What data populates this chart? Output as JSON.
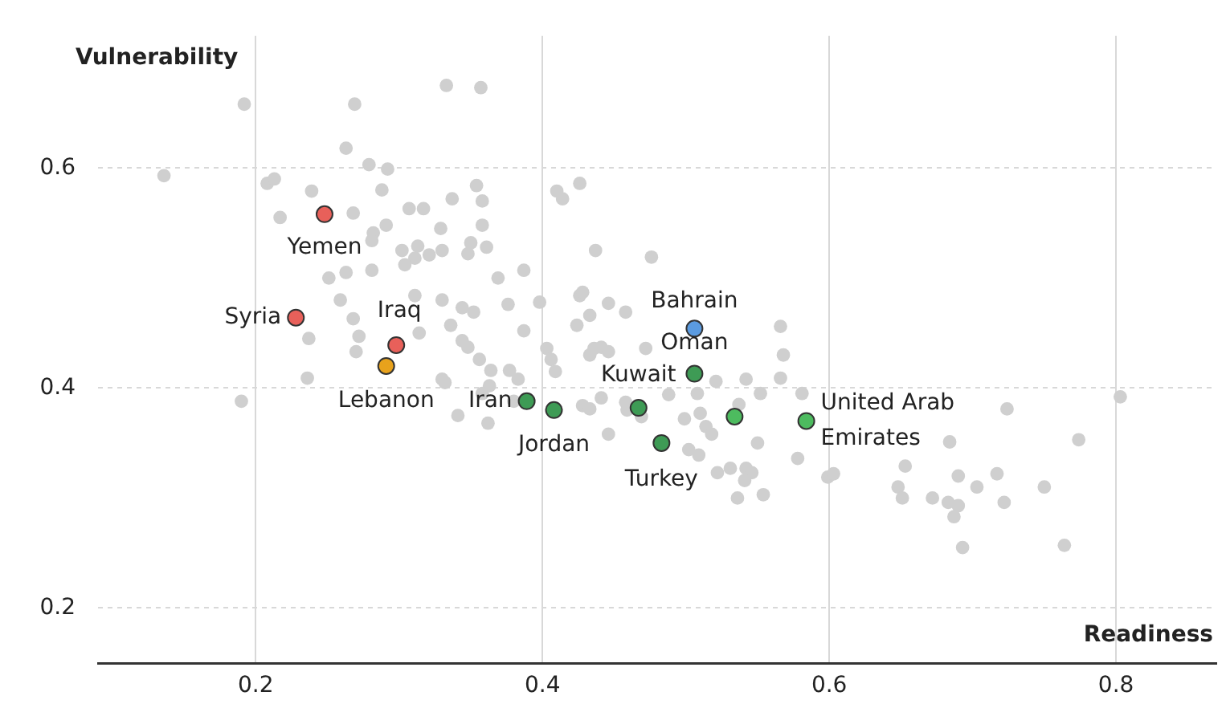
{
  "chart_data": {
    "type": "scatter",
    "xlabel": "Readiness",
    "ylabel": "Vulnerability",
    "xlim": [
      0.09,
      0.87
    ],
    "ylim": [
      0.15,
      0.72
    ],
    "xticks": [
      0.2,
      0.4,
      0.6,
      0.8
    ],
    "yticks": [
      0.2,
      0.4,
      0.6
    ],
    "grid": true,
    "marker": "circle",
    "series": [
      {
        "color": "#cfcfcf",
        "x": [
          0.192,
          0.269,
          0.333,
          0.357,
          0.263,
          0.279,
          0.292,
          0.136,
          0.208,
          0.213,
          0.239,
          0.288,
          0.354,
          0.337,
          0.358,
          0.217,
          0.268,
          0.307,
          0.317,
          0.291,
          0.282,
          0.281,
          0.329,
          0.358,
          0.302,
          0.313,
          0.311,
          0.321,
          0.33,
          0.35,
          0.361,
          0.348,
          0.369,
          0.304,
          0.251,
          0.263,
          0.281,
          0.259,
          0.311,
          0.33,
          0.344,
          0.352,
          0.376,
          0.268,
          0.237,
          0.272,
          0.27,
          0.314,
          0.336,
          0.344,
          0.348,
          0.41,
          0.414,
          0.426,
          0.437,
          0.476,
          0.387,
          0.398,
          0.426,
          0.428,
          0.446,
          0.458,
          0.424,
          0.433,
          0.387,
          0.566,
          0.568,
          0.403,
          0.436,
          0.441,
          0.446,
          0.472,
          0.236,
          0.19,
          0.356,
          0.364,
          0.377,
          0.33,
          0.332,
          0.363,
          0.358,
          0.341,
          0.362,
          0.406,
          0.433,
          0.566,
          0.542,
          0.521,
          0.508,
          0.488,
          0.552,
          0.581,
          0.537,
          0.383,
          0.409,
          0.441,
          0.428,
          0.433,
          0.458,
          0.459,
          0.469,
          0.38,
          0.499,
          0.51,
          0.514,
          0.518,
          0.446,
          0.55,
          0.502,
          0.509,
          0.578,
          0.522,
          0.531,
          0.542,
          0.546,
          0.541,
          0.599,
          0.603,
          0.536,
          0.554,
          0.803,
          0.724,
          0.774,
          0.684,
          0.653,
          0.69,
          0.717,
          0.703,
          0.75,
          0.648,
          0.651,
          0.672,
          0.683,
          0.69,
          0.687,
          0.722,
          0.693,
          0.764
        ],
        "values": [
          0.658,
          0.658,
          0.675,
          0.673,
          0.618,
          0.603,
          0.599,
          0.593,
          0.586,
          0.59,
          0.579,
          0.58,
          0.584,
          0.572,
          0.57,
          0.555,
          0.559,
          0.563,
          0.563,
          0.548,
          0.541,
          0.534,
          0.545,
          0.548,
          0.525,
          0.529,
          0.518,
          0.521,
          0.525,
          0.532,
          0.528,
          0.522,
          0.5,
          0.512,
          0.5,
          0.505,
          0.507,
          0.48,
          0.484,
          0.48,
          0.473,
          0.469,
          0.476,
          0.463,
          0.445,
          0.447,
          0.433,
          0.45,
          0.457,
          0.443,
          0.437,
          0.579,
          0.572,
          0.586,
          0.525,
          0.519,
          0.507,
          0.478,
          0.484,
          0.487,
          0.477,
          0.469,
          0.457,
          0.466,
          0.452,
          0.456,
          0.43,
          0.436,
          0.436,
          0.437,
          0.433,
          0.436,
          0.409,
          0.388,
          0.426,
          0.416,
          0.416,
          0.408,
          0.405,
          0.402,
          0.395,
          0.375,
          0.368,
          0.426,
          0.43,
          0.409,
          0.408,
          0.406,
          0.395,
          0.394,
          0.395,
          0.395,
          0.385,
          0.408,
          0.415,
          0.391,
          0.384,
          0.381,
          0.387,
          0.38,
          0.374,
          0.388,
          0.372,
          0.377,
          0.365,
          0.358,
          0.358,
          0.35,
          0.344,
          0.339,
          0.336,
          0.323,
          0.327,
          0.327,
          0.323,
          0.316,
          0.319,
          0.322,
          0.3,
          0.303,
          0.392,
          0.381,
          0.353,
          0.351,
          0.329,
          0.32,
          0.322,
          0.31,
          0.31,
          0.31,
          0.3,
          0.3,
          0.296,
          0.293,
          0.283,
          0.296,
          0.255,
          0.257
        ]
      },
      {
        "colors": [
          "#e8605a",
          "#e8605a",
          "#e8605a",
          "#e8a21c",
          "#3e9b55",
          "#3e9b55",
          "#3e9b55",
          "#3e9b55",
          "#5b9be0",
          "#3e9b55",
          "#4dbb5f",
          "#4dbb5f"
        ],
        "x": [
          0.248,
          0.228,
          0.298,
          0.291,
          0.389,
          0.408,
          0.467,
          0.506,
          0.506,
          0.483,
          0.534,
          0.584
        ],
        "values": [
          0.558,
          0.464,
          0.439,
          0.42,
          0.388,
          0.38,
          0.382,
          0.413,
          0.454,
          0.35,
          0.374,
          0.37
        ],
        "value_labels": [
          "Yemen",
          "Syria",
          "Iraq",
          "Lebanon",
          "Iran",
          "Jordan",
          "Kuwait",
          "Oman",
          "Bahrain",
          "Turkey",
          null,
          "United Arab Emirates"
        ]
      }
    ]
  }
}
